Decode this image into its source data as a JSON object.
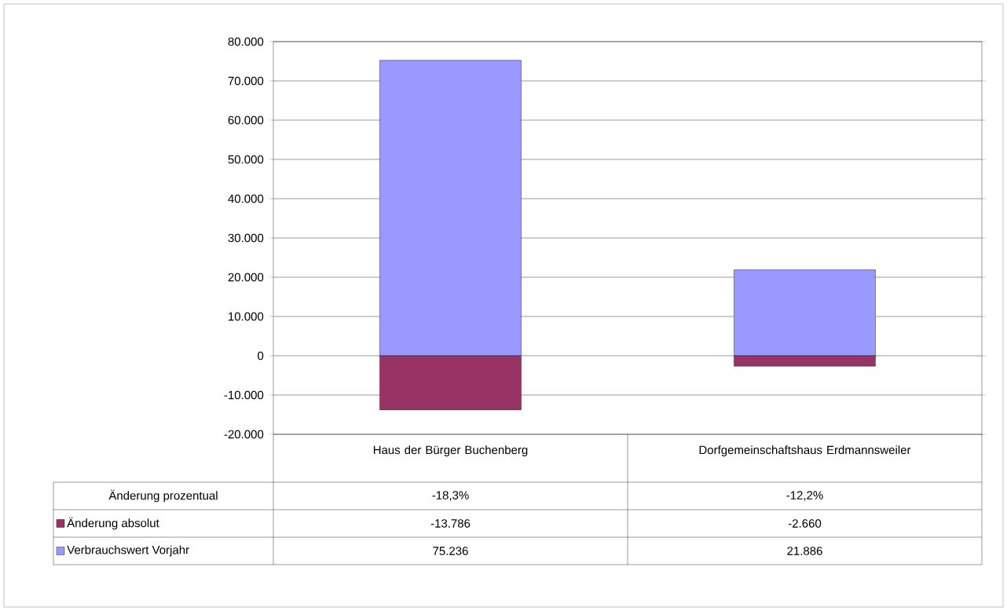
{
  "chart_data": {
    "type": "bar",
    "stacked": true,
    "categories": [
      "Haus der Bürger Buchenberg",
      "Dorfgemeinschaftshaus Erdmannsweiler"
    ],
    "series": [
      {
        "name": "Änderung absolut",
        "color": "#993366",
        "values": [
          -13786,
          -2660
        ],
        "value_labels": [
          "-13.786",
          "-2.660"
        ]
      },
      {
        "name": "Verbrauchswert Vorjahr",
        "color": "#9999ff",
        "values": [
          75236,
          21886
        ],
        "value_labels": [
          "75.236",
          "21.886"
        ]
      }
    ],
    "ylim": [
      -20000,
      80000
    ],
    "yticks": [
      {
        "value": -20000,
        "label": "-20.000"
      },
      {
        "value": -10000,
        "label": "-10.000"
      },
      0,
      {
        "value": 10000,
        "label": "10.000"
      },
      {
        "value": 20000,
        "label": "20.000"
      },
      {
        "value": 30000,
        "label": "30.000"
      },
      {
        "value": 40000,
        "label": "40.000"
      },
      {
        "value": 50000,
        "label": "50.000"
      },
      {
        "value": 60000,
        "label": "60.000"
      },
      {
        "value": 70000,
        "label": "70.000"
      },
      {
        "value": 80000,
        "label": "80.000"
      }
    ],
    "grid": "y",
    "legend": "bottom",
    "annotations": [
      "Änderung prozentual",
      "-18,3%",
      "-12,2%"
    ]
  }
}
